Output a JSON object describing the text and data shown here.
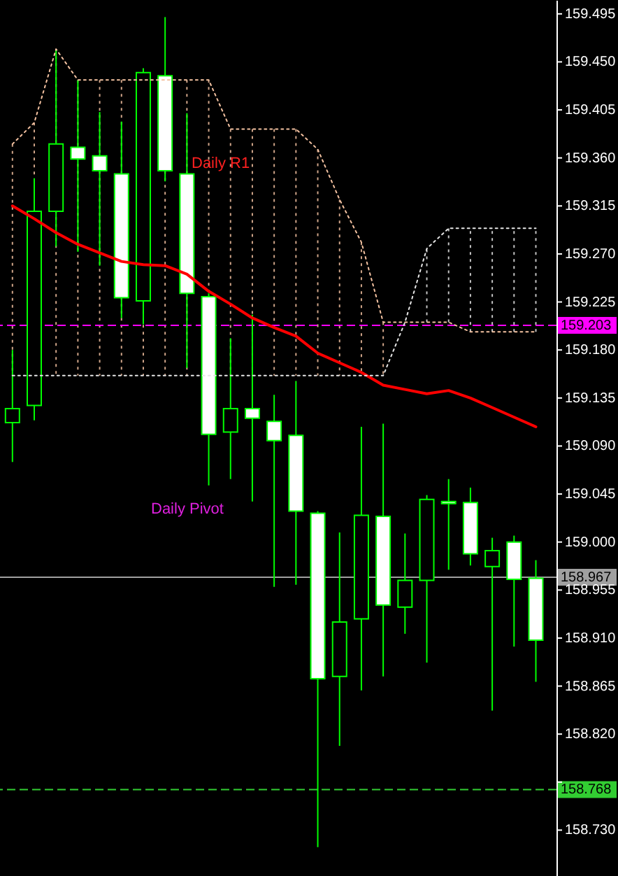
{
  "chart_data": {
    "type": "candlestick",
    "categories": [
      null,
      null,
      null,
      null,
      null,
      null,
      null,
      null,
      null,
      null,
      null,
      null,
      null,
      null,
      null,
      null,
      null,
      null,
      null,
      null,
      null,
      null,
      null,
      null,
      null
    ],
    "ohlc": [
      [
        159.112,
        159.18,
        159.075,
        159.125
      ],
      [
        159.128,
        159.341,
        159.114,
        159.31
      ],
      [
        159.31,
        159.462,
        159.277,
        159.373
      ],
      [
        159.37,
        159.433,
        159.272,
        159.359
      ],
      [
        159.362,
        159.403,
        159.259,
        159.348
      ],
      [
        159.345,
        159.394,
        159.21,
        159.229
      ],
      [
        159.226,
        159.444,
        159.204,
        159.44
      ],
      [
        159.437,
        159.492,
        159.338,
        159.348
      ],
      [
        159.345,
        159.402,
        159.163,
        159.233
      ],
      [
        159.23,
        159.233,
        159.053,
        159.101
      ],
      [
        159.103,
        159.191,
        159.059,
        159.125
      ],
      [
        159.125,
        159.213,
        159.038,
        159.116
      ],
      [
        159.113,
        159.138,
        158.958,
        159.095
      ],
      [
        159.1,
        159.151,
        158.96,
        159.029
      ],
      [
        159.027,
        159.029,
        158.714,
        158.872
      ],
      [
        158.874,
        159.009,
        158.809,
        158.925
      ],
      [
        158.928,
        159.108,
        158.861,
        159.025
      ],
      [
        159.024,
        159.111,
        158.874,
        158.941
      ],
      [
        158.939,
        159.008,
        158.914,
        158.964
      ],
      [
        158.964,
        159.044,
        158.887,
        159.04
      ],
      [
        159.038,
        159.059,
        158.974,
        159.036
      ],
      [
        159.037,
        159.051,
        158.978,
        158.989
      ],
      [
        158.977,
        159.004,
        158.842,
        158.992
      ],
      [
        159.0,
        159.006,
        158.902,
        158.965
      ],
      [
        158.966,
        158.983,
        158.869,
        158.908
      ]
    ],
    "series": [
      {
        "type": "line",
        "color": "#ff0000",
        "values": [
          159.315,
          159.303,
          159.29,
          159.279,
          159.271,
          159.263,
          159.26,
          159.259,
          159.251,
          159.235,
          159.223,
          159.21,
          159.201,
          159.193,
          159.177,
          159.168,
          159.159,
          159.147,
          159.143,
          159.139,
          159.142,
          159.135,
          159.126,
          159.117,
          159.108
        ]
      },
      {
        "type": "line",
        "color": "#f4c2a1",
        "line_style": "dotted",
        "values": [
          159.373,
          159.393,
          159.462,
          159.433,
          159.433,
          159.433,
          159.433,
          159.433,
          159.433,
          159.433,
          159.387,
          159.387,
          159.387,
          159.387,
          159.368,
          159.321,
          159.281,
          159.206,
          159.206,
          159.206,
          159.206,
          159.197,
          159.197,
          159.197,
          159.197
        ]
      },
      {
        "type": "line",
        "color": "#e6e6e6",
        "line_style": "dotted",
        "values": [
          159.156,
          159.156,
          159.156,
          159.156,
          159.156,
          159.156,
          159.156,
          159.156,
          159.156,
          159.156,
          159.156,
          159.156,
          159.156,
          159.156,
          159.156,
          159.156,
          159.156,
          159.156,
          159.206,
          159.275,
          159.294,
          159.294,
          159.294,
          159.294,
          159.294
        ]
      }
    ],
    "ylim": [
      158.687,
      159.508
    ],
    "yticks": [
      159.495,
      {
        "value": 159.45,
        "label": "159.450"
      },
      159.405,
      {
        "value": 159.36,
        "label": "159.360"
      },
      159.315,
      {
        "value": 159.27,
        "label": "159.270"
      },
      159.225,
      {
        "value": 159.18,
        "label": "159.180"
      },
      159.135,
      {
        "value": 159.09,
        "label": "159.090"
      },
      159.045,
      {
        "value": 159.0,
        "label": "159.000"
      },
      158.955,
      {
        "value": 158.91,
        "label": "158.910"
      },
      158.865,
      {
        "value": 158.82,
        "label": "158.820"
      },
      {
        "value": 158.775,
        "label": null
      },
      {
        "value": 158.73,
        "label": "158.730"
      }
    ],
    "ref_lines": [
      {
        "axis": "y",
        "value": 159.203,
        "label": "159.203",
        "color": "#ff00ff",
        "line_style": "dashed"
      },
      {
        "axis": "y",
        "value": 158.967,
        "label": "158.967",
        "color": "#a0a0a0",
        "line_style": "solid"
      },
      {
        "axis": "y",
        "value": 158.768,
        "label": "158.768",
        "color": "#32cd32",
        "line_style": "dashed"
      }
    ],
    "annotations": [
      "Daily R1",
      "Daily Pivot"
    ],
    "grid": false
  }
}
